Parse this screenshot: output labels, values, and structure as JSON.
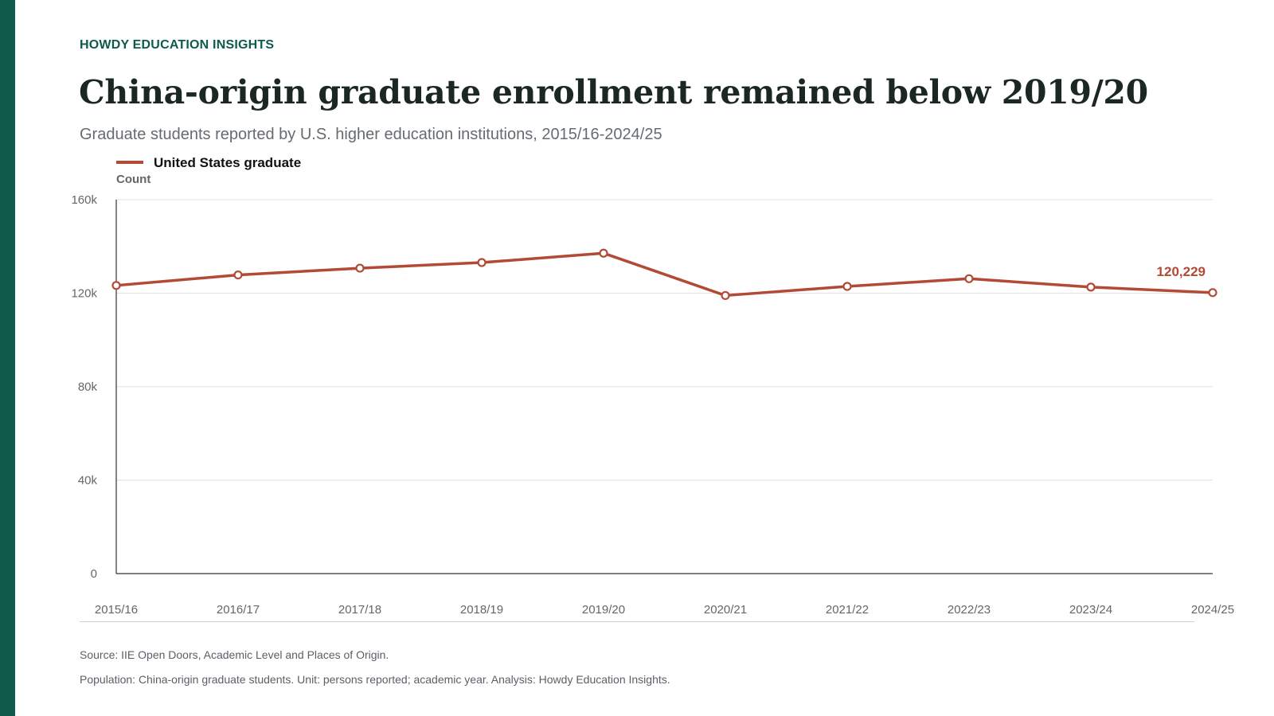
{
  "brand": "HOWDY EDUCATION INSIGHTS",
  "title": "China-origin graduate enrollment remained below 2019/20",
  "subtitle": "Graduate students reported by U.S. higher education institutions, 2015/16-2024/25",
  "notes": {
    "source": "Source: IIE Open Doors, Academic Level and Places of Origin.",
    "population": "Population: China-origin graduate students. Unit: persons reported; academic year. Analysis: Howdy Education Insights."
  },
  "colors": {
    "accent": "#0f5a4a",
    "series": "#b24a35",
    "grid": "#e2e2e2",
    "axis": "#333333",
    "tick_text": "#666666"
  },
  "chart_data": {
    "type": "line",
    "title": "",
    "xlabel": "",
    "ylabel": "Count",
    "ylim": [
      0,
      160000
    ],
    "y_ticks": [
      0,
      40000,
      80000,
      120000,
      160000
    ],
    "y_tick_labels": [
      "0",
      "40k",
      "80k",
      "120k",
      "160k"
    ],
    "grid": true,
    "legend_position": "top-left",
    "x": [
      "2015/16",
      "2016/17",
      "2017/18",
      "2018/19",
      "2019/20",
      "2020/21",
      "2021/22",
      "2022/23",
      "2023/24",
      "2024/25"
    ],
    "series": [
      {
        "name": "United States graduate",
        "values": [
          123300,
          127800,
          130700,
          133100,
          137100,
          119000,
          122900,
          126200,
          122600,
          120229
        ]
      }
    ],
    "annotations": [
      {
        "x": "2024/25",
        "value": 120229,
        "text": "120,229"
      }
    ]
  }
}
